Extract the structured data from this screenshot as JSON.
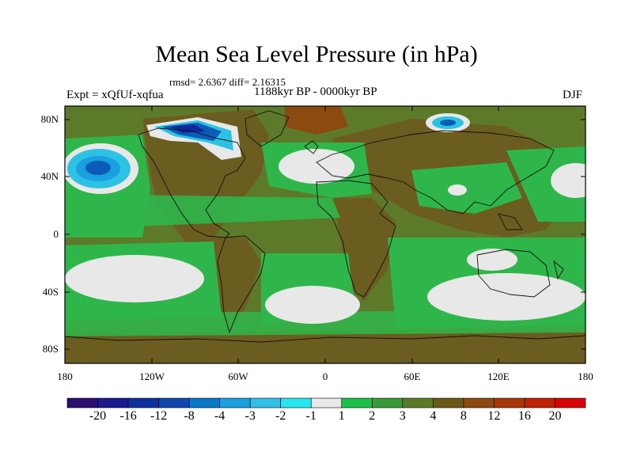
{
  "header": {
    "title": "Mean Sea Level Pressure (in hPa)",
    "stats": "rmsd= 2.6367 diff= 2.16315",
    "period": "1188kyr BP - 0000kyr BP",
    "experiment": "Expt = xQfUf-xqfua",
    "season": "DJF"
  },
  "axes": {
    "lat_labels": [
      "80N",
      "40N",
      "0",
      "40S",
      "80S"
    ],
    "lon_labels": [
      "180",
      "120W",
      "60W",
      "0",
      "60E",
      "120E",
      "180"
    ]
  },
  "colorbar": {
    "labels": [
      "-20",
      "-16",
      "-12",
      "-8",
      "-4",
      "-3",
      "-2",
      "-1",
      "1",
      "2",
      "3",
      "4",
      "8",
      "12",
      "16",
      "20"
    ],
    "colors": [
      "#2a0f6e",
      "#1a1a8c",
      "#1030a0",
      "#1048b0",
      "#0a78c8",
      "#1aa0e0",
      "#30c0e8",
      "#28e6f0",
      "#e8e8e8",
      "#1ec04a",
      "#3a9a38",
      "#5a7a28",
      "#6a5a18",
      "#8a4a10",
      "#a83808",
      "#c02006",
      "#d80404"
    ]
  },
  "map": {
    "colors": {
      "ocean_base": "#5d7a2a",
      "land_base": "#6b5d1f",
      "green": "#2fb64a",
      "white": "#e8e8e8",
      "light_blue": "#2cc2e4",
      "mid_blue": "#1aa0e0",
      "deep_blue": "#0a5cb8",
      "navy": "#102898",
      "dark_brown": "#8a4a10",
      "coast": "#111111"
    }
  }
}
